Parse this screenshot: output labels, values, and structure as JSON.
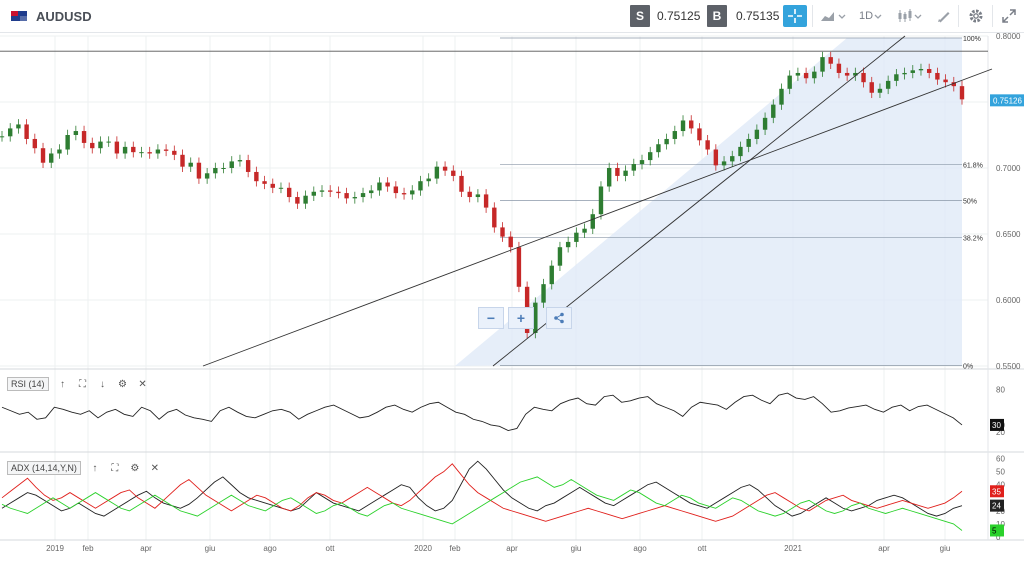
{
  "header": {
    "symbol": "AUDUSD",
    "sell_label": "S",
    "sell_price": "0.75125",
    "buy_label": "B",
    "buy_price": "0.75135",
    "timeframe": "1D"
  },
  "zoom": {
    "minus": "−",
    "plus": "+"
  },
  "chart_data": [
    {
      "type": "line",
      "series_style": "candlestick",
      "x_tick_labels": [
        "2019",
        "feb",
        "apr",
        "giu",
        "ago",
        "ott",
        "2020",
        "feb",
        "apr",
        "giu",
        "ago",
        "ott",
        "2021",
        "apr",
        "giu"
      ],
      "y_tick_labels": [
        "0.8000",
        "0.7500",
        "0.7000",
        "0.6500",
        "0.6000",
        "0.5500"
      ],
      "ylim": [
        0.55,
        0.8
      ],
      "last_price_label": "0.75126",
      "last_price": 0.75126,
      "fibonacci": {
        "levels": [
          {
            "label": "100%",
            "value": 0.7985
          },
          {
            "label": "61.8%",
            "value": 0.7025
          },
          {
            "label": "50%",
            "value": 0.6755
          },
          {
            "label": "38.2%",
            "value": 0.6475
          },
          {
            "label": "0%",
            "value": 0.5505
          }
        ]
      },
      "horizontal_line": 0.7885,
      "closes": [
        0.724,
        0.73,
        0.733,
        0.722,
        0.715,
        0.704,
        0.711,
        0.714,
        0.725,
        0.728,
        0.719,
        0.715,
        0.72,
        0.72,
        0.711,
        0.716,
        0.712,
        0.712,
        0.711,
        0.714,
        0.713,
        0.71,
        0.701,
        0.704,
        0.692,
        0.696,
        0.7,
        0.7,
        0.705,
        0.706,
        0.697,
        0.69,
        0.688,
        0.685,
        0.685,
        0.678,
        0.673,
        0.679,
        0.682,
        0.683,
        0.682,
        0.681,
        0.677,
        0.678,
        0.681,
        0.683,
        0.689,
        0.686,
        0.681,
        0.68,
        0.683,
        0.69,
        0.692,
        0.701,
        0.698,
        0.694,
        0.682,
        0.678,
        0.68,
        0.67,
        0.655,
        0.648,
        0.64,
        0.61,
        0.575,
        0.598,
        0.612,
        0.626,
        0.64,
        0.644,
        0.651,
        0.654,
        0.665,
        0.686,
        0.7,
        0.694,
        0.698,
        0.703,
        0.706,
        0.712,
        0.718,
        0.722,
        0.728,
        0.736,
        0.73,
        0.721,
        0.714,
        0.702,
        0.705,
        0.709,
        0.716,
        0.722,
        0.729,
        0.738,
        0.748,
        0.76,
        0.77,
        0.772,
        0.768,
        0.773,
        0.784,
        0.779,
        0.772,
        0.77,
        0.772,
        0.765,
        0.757,
        0.76,
        0.766,
        0.771,
        0.772,
        0.774,
        0.775,
        0.772,
        0.767,
        0.765,
        0.762,
        0.752
      ]
    },
    {
      "type": "line",
      "title": "RSI (14)",
      "y_tick_labels": [
        "80",
        "30",
        "20"
      ],
      "ylim": [
        20,
        85
      ],
      "last_value_label": "30",
      "values": [
        55,
        50,
        45,
        48,
        38,
        40,
        55,
        52,
        48,
        45,
        50,
        40,
        48,
        52,
        45,
        42,
        55,
        50,
        38,
        48,
        52,
        44,
        40,
        38,
        35,
        50,
        55,
        48,
        42,
        40,
        45,
        50,
        52,
        48,
        38,
        45,
        50,
        55,
        58,
        52,
        46,
        40,
        42,
        48,
        55,
        58,
        52,
        48,
        55,
        60,
        62,
        55,
        48,
        45,
        38,
        35,
        30,
        28,
        22,
        25,
        45,
        55,
        52,
        50,
        60,
        65,
        68,
        60,
        58,
        70,
        72,
        62,
        64,
        68,
        70,
        60,
        55,
        50,
        42,
        55,
        62,
        60,
        58,
        52,
        62,
        70,
        72,
        65,
        60,
        72,
        75,
        68,
        66,
        70,
        60,
        48,
        50,
        54,
        56,
        58,
        52,
        48,
        55,
        58,
        50,
        56,
        58,
        52,
        46,
        40,
        30
      ]
    },
    {
      "type": "line",
      "title": "ADX (14,14,Y,N)",
      "y_tick_labels": [
        "60",
        "50",
        "40",
        "20",
        "10",
        "0"
      ],
      "ylim": [
        0,
        62
      ],
      "last_value_labels": [
        "24",
        "35",
        "5"
      ],
      "series": [
        {
          "color": "#222222",
          "values": [
            22,
            26,
            30,
            34,
            32,
            28,
            24,
            20,
            22,
            26,
            22,
            18,
            16,
            20,
            24,
            28,
            32,
            35,
            30,
            26,
            24,
            22,
            25,
            30,
            36,
            42,
            46,
            40,
            34,
            30,
            28,
            26,
            24,
            22,
            20,
            22,
            28,
            34,
            30,
            26,
            24,
            22,
            20,
            24,
            28,
            32,
            36,
            40,
            38,
            30,
            24,
            20,
            22,
            28,
            40,
            52,
            58,
            52,
            44,
            36,
            30,
            26,
            22,
            20,
            24,
            26,
            30,
            34,
            38,
            34,
            30,
            26,
            24,
            28,
            32,
            36,
            40,
            42,
            38,
            34,
            30,
            26,
            24,
            22,
            26,
            30,
            34,
            38,
            40,
            36,
            30,
            24,
            20,
            16,
            18,
            22,
            26,
            30,
            26,
            22,
            20,
            22,
            24,
            28,
            30,
            32,
            30,
            26,
            22,
            18,
            16,
            18,
            22,
            24
          ]
        },
        {
          "color": "#e0201c",
          "values": [
            30,
            35,
            40,
            45,
            38,
            32,
            28,
            30,
            34,
            30,
            26,
            22,
            26,
            30,
            34,
            36,
            30,
            26,
            22,
            28,
            34,
            40,
            44,
            38,
            32,
            28,
            24,
            20,
            24,
            28,
            32,
            30,
            26,
            22,
            20,
            24,
            30,
            34,
            32,
            28,
            26,
            30,
            34,
            38,
            34,
            30,
            26,
            24,
            28,
            34,
            40,
            46,
            50,
            56,
            48,
            40,
            34,
            30,
            26,
            22,
            20,
            18,
            16,
            14,
            12,
            14,
            16,
            18,
            20,
            22,
            20,
            18,
            16,
            14,
            16,
            18,
            20,
            22,
            24,
            22,
            20,
            18,
            16,
            14,
            12,
            14,
            16,
            20,
            24,
            28,
            32,
            34,
            30,
            26,
            22,
            20,
            24,
            28,
            30,
            32,
            28,
            26,
            24,
            22,
            24,
            26,
            28,
            26,
            24,
            22,
            24,
            26,
            30,
            35
          ]
        },
        {
          "color": "#2bd12b",
          "values": [
            25,
            22,
            20,
            18,
            22,
            26,
            30,
            26,
            22,
            26,
            30,
            34,
            30,
            26,
            22,
            20,
            24,
            28,
            32,
            28,
            24,
            20,
            18,
            16,
            20,
            24,
            28,
            32,
            28,
            24,
            22,
            20,
            24,
            28,
            30,
            26,
            22,
            18,
            20,
            24,
            26,
            22,
            18,
            16,
            20,
            24,
            26,
            22,
            20,
            18,
            16,
            14,
            12,
            10,
            14,
            18,
            22,
            26,
            30,
            34,
            38,
            42,
            44,
            46,
            42,
            38,
            40,
            44,
            40,
            36,
            32,
            30,
            28,
            32,
            36,
            34,
            30,
            26,
            24,
            28,
            32,
            30,
            26,
            24,
            22,
            26,
            30,
            28,
            24,
            20,
            18,
            16,
            18,
            22,
            26,
            28,
            24,
            20,
            18,
            20,
            24,
            26,
            22,
            20,
            18,
            20,
            22,
            20,
            18,
            16,
            14,
            12,
            10,
            5
          ]
        }
      ]
    }
  ]
}
